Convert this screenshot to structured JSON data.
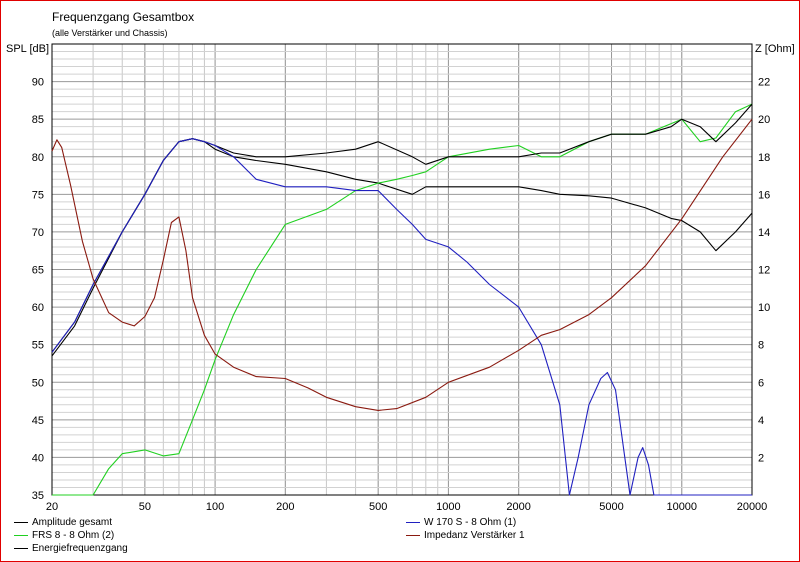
{
  "chart_data": {
    "type": "line",
    "title": "Frequenzgang Gesamtbox",
    "subtitle": "(alle Verstärker und Chassis)",
    "ylabel_left": "SPL [dB]",
    "ylabel_right": "Z [Ohm]",
    "xscale": "log",
    "xlim": [
      20,
      20000
    ],
    "ylim_left": [
      35,
      95
    ],
    "ylim_right": [
      0,
      24
    ],
    "xticks": [
      20,
      50,
      100,
      200,
      500,
      1000,
      2000,
      5000,
      10000,
      20000
    ],
    "xtick_labels": [
      "20",
      "50",
      "100",
      "200",
      "500",
      "1000",
      "2000",
      "5000",
      "10000",
      "20000"
    ],
    "yticks_left": [
      35,
      40,
      45,
      50,
      55,
      60,
      65,
      70,
      75,
      80,
      85,
      90
    ],
    "ytick_labels_left": [
      "35",
      "40",
      "45",
      "50",
      "55",
      "60",
      "65",
      "70",
      "75",
      "80",
      "85",
      "90"
    ],
    "yticks_right": [
      2,
      4,
      6,
      8,
      10,
      12,
      14,
      16,
      18,
      20,
      22
    ],
    "ytick_labels_right": [
      "2",
      "4",
      "6",
      "8",
      "10",
      "12",
      "14",
      "16",
      "18",
      "20",
      "22"
    ],
    "grid": true,
    "series": [
      {
        "name": "Amplitude gesamt",
        "axis": "left",
        "color": "#000000",
        "x": [
          20,
          25,
          30,
          40,
          50,
          60,
          70,
          80,
          90,
          100,
          120,
          150,
          200,
          300,
          400,
          500,
          700,
          800,
          1000,
          1500,
          2000,
          2500,
          3000,
          4000,
          5000,
          7000,
          9000,
          10000,
          12000,
          14000,
          17000,
          20000
        ],
        "y": [
          54,
          58,
          63,
          70,
          75,
          79.5,
          82,
          82.4,
          82,
          81,
          80,
          79.5,
          79,
          78,
          77,
          76.5,
          75,
          76,
          76,
          76,
          76,
          75.5,
          75,
          74.8,
          74.5,
          73.2,
          71.8,
          71.5,
          70,
          67.5,
          70,
          72.5
        ]
      },
      {
        "name": "FRS 8 - 8 Ohm (2)",
        "axis": "left",
        "color": "#20d020",
        "x": [
          20,
          25,
          30,
          35,
          40,
          50,
          60,
          70,
          80,
          90,
          100,
          120,
          150,
          200,
          300,
          400,
          500,
          600,
          700,
          800,
          1000,
          1500,
          2000,
          2500,
          3000,
          4000,
          5000,
          7000,
          10000,
          12000,
          14000,
          17000,
          20000
        ],
        "y": [
          35,
          35,
          35,
          38.5,
          40.5,
          41,
          40.2,
          40.5,
          45,
          49,
          53,
          59,
          65,
          71,
          73,
          75.5,
          76.5,
          77,
          77.5,
          78,
          80,
          81,
          81.5,
          80,
          80,
          82,
          83,
          83,
          85,
          82,
          82.5,
          86,
          87
        ]
      },
      {
        "name": "Energiefrequenzgang",
        "axis": "left",
        "color": "#000000",
        "x": [
          20,
          25,
          30,
          40,
          50,
          60,
          70,
          80,
          90,
          100,
          120,
          150,
          200,
          300,
          400,
          500,
          700,
          800,
          1000,
          1500,
          2000,
          2500,
          3000,
          4000,
          5000,
          7000,
          9000,
          10000,
          12000,
          14000,
          17000,
          20000
        ],
        "y": [
          53.5,
          57.5,
          62.5,
          70,
          75,
          79.5,
          82,
          82.4,
          82,
          81.5,
          80.5,
          80,
          80,
          80.5,
          81,
          82,
          80,
          79,
          80,
          80,
          80,
          80.5,
          80.5,
          82,
          83,
          83,
          84,
          85,
          84,
          82,
          84.5,
          87
        ]
      },
      {
        "name": "W 170 S - 8 Ohm (1)",
        "axis": "left",
        "color": "#2020c0",
        "x": [
          20,
          25,
          30,
          40,
          50,
          60,
          70,
          80,
          90,
          100,
          120,
          150,
          200,
          300,
          400,
          500,
          600,
          700,
          800,
          1000,
          1200,
          1500,
          2000,
          2500,
          3000,
          3300,
          3600,
          4000,
          4500,
          4800,
          5200,
          5700,
          6000,
          6500,
          6800,
          7200,
          7600,
          8000,
          10000,
          20000
        ],
        "y": [
          54,
          58,
          63,
          70,
          75,
          79.5,
          82,
          82.4,
          82,
          81.5,
          80,
          77,
          76,
          76,
          75.5,
          75.5,
          73,
          71,
          69,
          68,
          66,
          63,
          60,
          55,
          47,
          35,
          40,
          47,
          50.5,
          51.3,
          49,
          40,
          35,
          40,
          41.3,
          39,
          35,
          35,
          35,
          35
        ]
      },
      {
        "name": "Impedanz Verstärker 1",
        "axis": "right",
        "color": "#8a1a10",
        "x": [
          20,
          21,
          22,
          24,
          27,
          30,
          35,
          40,
          45,
          50,
          55,
          60,
          65,
          70,
          75,
          80,
          90,
          100,
          120,
          150,
          200,
          250,
          300,
          400,
          500,
          600,
          800,
          1000,
          1500,
          2000,
          2500,
          3000,
          4000,
          5000,
          7000,
          10000,
          15000,
          20000
        ],
        "y": [
          18.3,
          18.9,
          18.5,
          16.5,
          13.5,
          11.5,
          9.7,
          9.2,
          9.0,
          9.5,
          10.5,
          12.5,
          14.5,
          14.8,
          13,
          10.5,
          8.5,
          7.5,
          6.8,
          6.3,
          6.2,
          5.7,
          5.2,
          4.7,
          4.5,
          4.6,
          5.2,
          6.0,
          6.8,
          7.7,
          8.5,
          8.8,
          9.6,
          10.5,
          12.2,
          14.7,
          18,
          20
        ]
      }
    ]
  }
}
